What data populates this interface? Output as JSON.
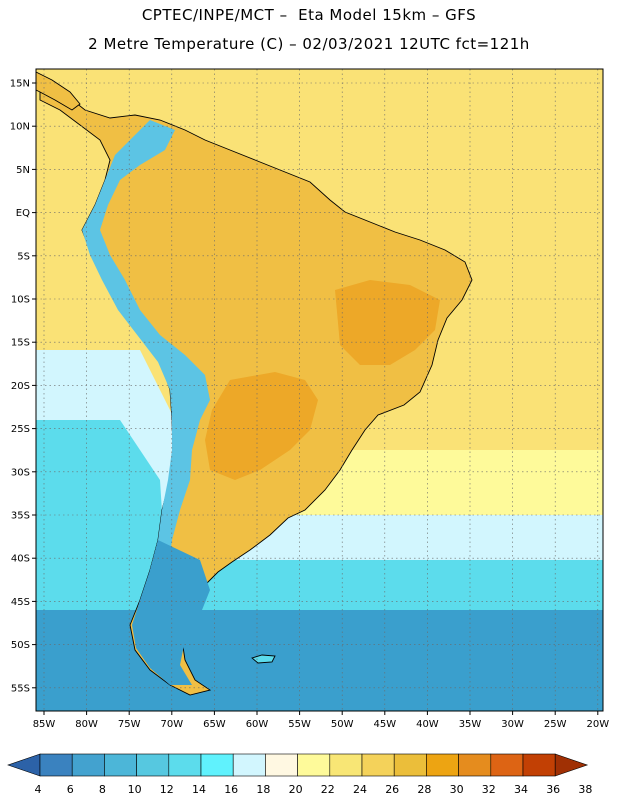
{
  "title_line1": "CPTEC/INPE/MCT –  Eta Model 15km – GFS",
  "title_line2": "2 Metre Temperature (C) – 02/03/2021 12UTC fct=121h",
  "lat_labels": [
    "15N",
    "10N",
    "5N",
    "EQ",
    "5S",
    "10S",
    "15S",
    "20S",
    "25S",
    "30S",
    "35S",
    "40S",
    "45S",
    "50S",
    "55S"
  ],
  "lon_labels": [
    "85W",
    "80W",
    "75W",
    "70W",
    "65W",
    "60W",
    "55W",
    "50W",
    "45W",
    "40W",
    "35W",
    "30W",
    "25W",
    "20W"
  ],
  "colorbar": {
    "ticks": [
      "4",
      "6",
      "8",
      "10",
      "12",
      "14",
      "16",
      "18",
      "20",
      "22",
      "24",
      "26",
      "28",
      "30",
      "32",
      "34",
      "36",
      "38"
    ],
    "colors": [
      "#2c62a8",
      "#3a82bf",
      "#43a2cf",
      "#4cb6d8",
      "#56c8e0",
      "#5cdcec",
      "#60f2fd",
      "#d2f6fe",
      "#fff8e2",
      "#fefa9a",
      "#f8e675",
      "#f4d25a",
      "#ebbe3a",
      "#eda412",
      "#e58c1e",
      "#dd6414",
      "#c24004",
      "#a03004"
    ]
  },
  "colors": {
    "land_main": "#f0bf44",
    "land_hot": "#eda828",
    "ocean_warm": "#fae276",
    "ocean_mild": "#fefa9a",
    "ocean_cool": "#d2f6fe",
    "ocean_cold": "#5cdcec",
    "ocean_colder": "#3a9fcd",
    "andes_cold": "#5cc4e4"
  }
}
